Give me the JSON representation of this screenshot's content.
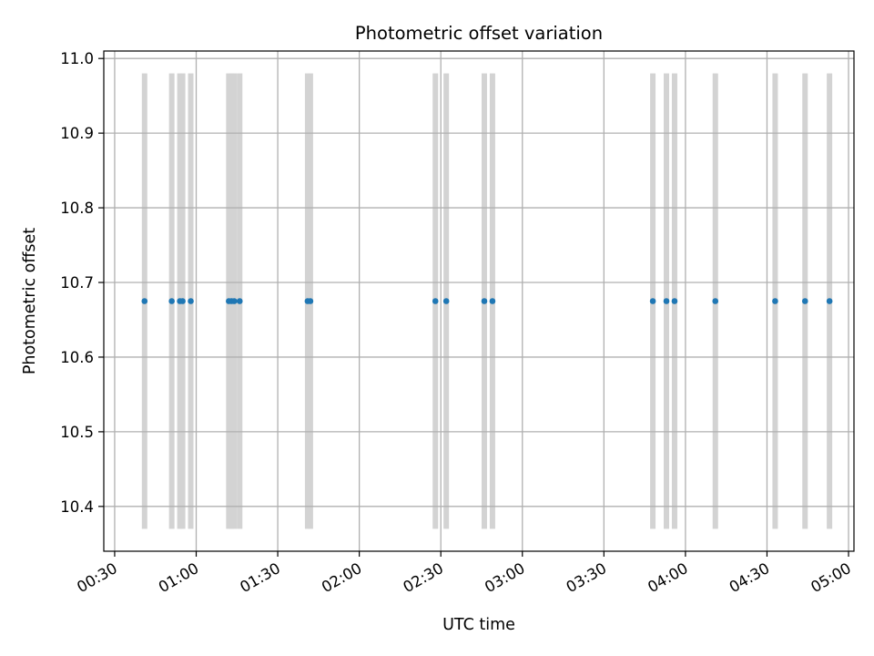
{
  "chart_data": {
    "type": "scatter",
    "title": "Photometric offset variation",
    "xlabel": "UTC time",
    "ylabel": "Photometric offset",
    "x_axis": {
      "kind": "time",
      "range": [
        "00:26",
        "05:02"
      ],
      "ticks": [
        "00:30",
        "01:00",
        "01:30",
        "02:00",
        "02:30",
        "03:00",
        "03:30",
        "04:00",
        "04:30",
        "05:00"
      ]
    },
    "y_axis": {
      "range": [
        10.34,
        11.01
      ],
      "ticks": [
        "10.4",
        "10.5",
        "10.6",
        "10.7",
        "10.8",
        "10.9",
        "11.0"
      ]
    },
    "grid": true,
    "marker_color": "#1f77b4",
    "band_color": "#d3d3d3",
    "bands": {
      "y_range": [
        10.37,
        10.98
      ],
      "times": [
        "00:41",
        "00:51",
        "00:54",
        "00:55",
        "00:58",
        "01:12",
        "01:13",
        "01:14",
        "01:16",
        "01:41",
        "01:42",
        "02:28",
        "02:32",
        "02:46",
        "02:49",
        "03:48",
        "03:53",
        "03:56",
        "04:11",
        "04:33",
        "04:44",
        "04:53"
      ]
    },
    "series": [
      {
        "values": [
          {
            "x": "00:41",
            "y": 10.675
          },
          {
            "x": "00:51",
            "y": 10.675
          },
          {
            "x": "00:54",
            "y": 10.675
          },
          {
            "x": "00:55",
            "y": 10.675
          },
          {
            "x": "00:58",
            "y": 10.675
          },
          {
            "x": "01:12",
            "y": 10.675
          },
          {
            "x": "01:13",
            "y": 10.675
          },
          {
            "x": "01:14",
            "y": 10.675
          },
          {
            "x": "01:16",
            "y": 10.675
          },
          {
            "x": "01:41",
            "y": 10.675
          },
          {
            "x": "01:42",
            "y": 10.675
          },
          {
            "x": "02:28",
            "y": 10.675
          },
          {
            "x": "02:32",
            "y": 10.675
          },
          {
            "x": "02:46",
            "y": 10.675
          },
          {
            "x": "02:49",
            "y": 10.675
          },
          {
            "x": "03:48",
            "y": 10.675
          },
          {
            "x": "03:53",
            "y": 10.675
          },
          {
            "x": "03:56",
            "y": 10.675
          },
          {
            "x": "04:11",
            "y": 10.675
          },
          {
            "x": "04:33",
            "y": 10.675
          },
          {
            "x": "04:44",
            "y": 10.675
          },
          {
            "x": "04:53",
            "y": 10.675
          }
        ]
      }
    ]
  }
}
